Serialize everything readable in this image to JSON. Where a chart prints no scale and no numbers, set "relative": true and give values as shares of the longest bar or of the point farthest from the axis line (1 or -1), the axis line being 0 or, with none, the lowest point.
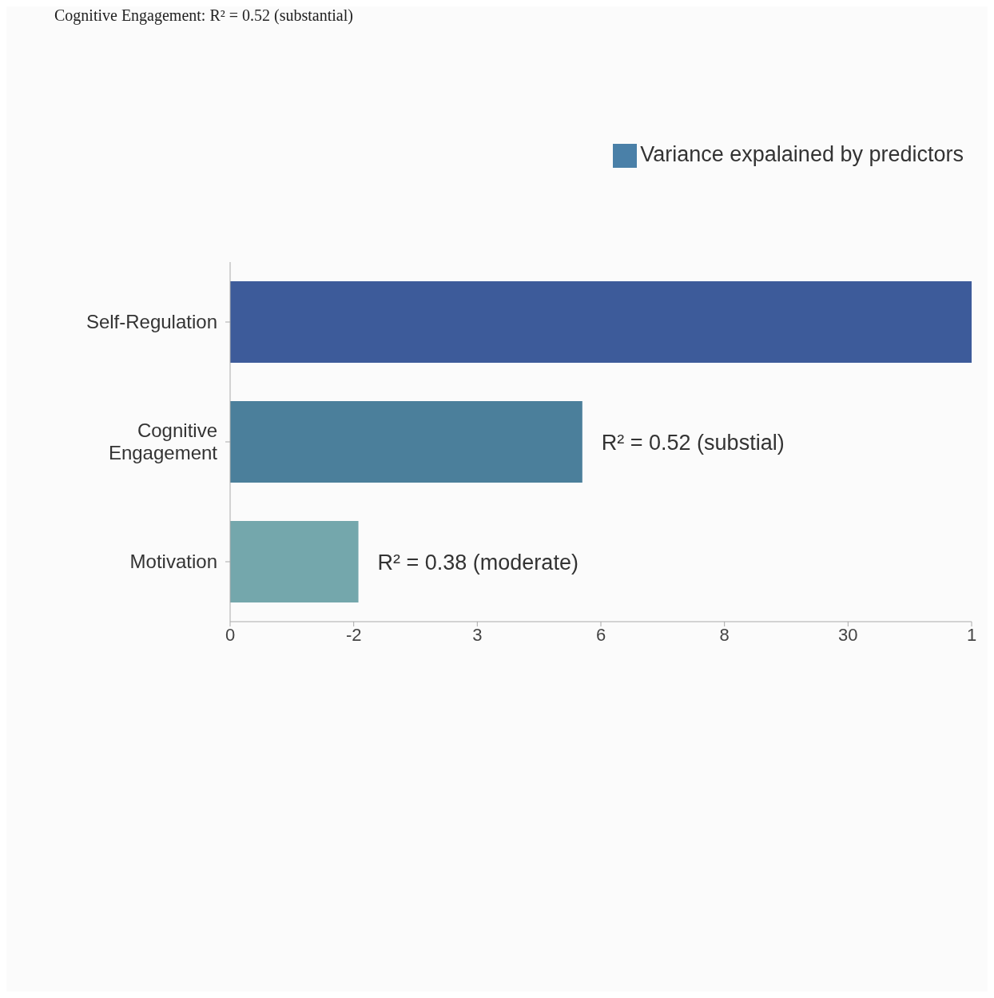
{
  "chart_data": {
    "type": "bar",
    "orientation": "horizontal",
    "relative": true,
    "categories": [
      "Self-Regulation",
      "Cognitive Engagement",
      "Motivation"
    ],
    "series": [
      {
        "name": "Variance expalained by predictors",
        "color": "#4a80a8",
        "colors": [
          "#3d5b9a",
          "#4b7f9b",
          "#74a7ac"
        ],
        "values": [
          1,
          0.475,
          0.173
        ]
      }
    ],
    "annotations": [
      "Cognitive Engagement: R² = 0.52 (substantial)",
      "0",
      "-2",
      "3",
      "6",
      "8",
      "30",
      "1",
      {
        "text": "R² = 0.52 (substial)",
        "x": 0.475,
        "y": "Cognitive Engagement"
      },
      {
        "text": "R² = 0.38 (moderate)",
        "x": 0.173,
        "y": "Motivation"
      }
    ],
    "legend": "top right"
  }
}
